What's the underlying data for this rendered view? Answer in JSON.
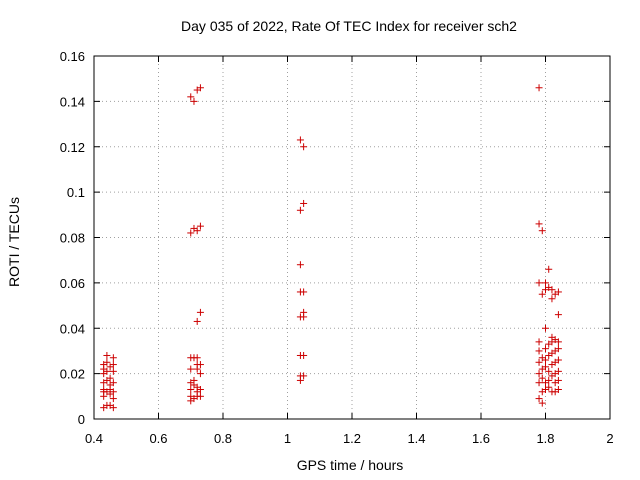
{
  "chart_data": {
    "type": "scatter",
    "title": "Day 035 of 2022, Rate Of TEC Index for receiver sch2",
    "xlabel": "GPS time / hours",
    "ylabel": "ROTI / TECUs",
    "xlim": [
      0.4,
      2.0
    ],
    "ylim": [
      0,
      0.16
    ],
    "xticks": [
      "0.4",
      "0.6",
      "0.8",
      "1",
      "1.2",
      "1.4",
      "1.6",
      "1.8",
      "2"
    ],
    "yticks": [
      "0",
      "0.02",
      "0.04",
      "0.06",
      "0.08",
      "0.1",
      "0.12",
      "0.14",
      "0.16"
    ],
    "grid": true,
    "marker": "+",
    "marker_color": "#cc0000",
    "series": [
      {
        "points": [
          [
            0.43,
            0.005
          ],
          [
            0.43,
            0.01
          ],
          [
            0.43,
            0.012
          ],
          [
            0.43,
            0.013
          ],
          [
            0.43,
            0.016
          ],
          [
            0.43,
            0.02
          ],
          [
            0.43,
            0.022
          ],
          [
            0.43,
            0.024
          ],
          [
            0.44,
            0.006
          ],
          [
            0.44,
            0.012
          ],
          [
            0.44,
            0.017
          ],
          [
            0.44,
            0.021
          ],
          [
            0.44,
            0.025
          ],
          [
            0.44,
            0.028
          ],
          [
            0.45,
            0.006
          ],
          [
            0.45,
            0.011
          ],
          [
            0.45,
            0.013
          ],
          [
            0.45,
            0.015
          ],
          [
            0.45,
            0.018
          ],
          [
            0.45,
            0.023
          ],
          [
            0.46,
            0.005
          ],
          [
            0.46,
            0.009
          ],
          [
            0.46,
            0.012
          ],
          [
            0.46,
            0.016
          ],
          [
            0.46,
            0.021
          ],
          [
            0.46,
            0.024
          ],
          [
            0.46,
            0.027
          ],
          [
            0.7,
            0.008
          ],
          [
            0.7,
            0.01
          ],
          [
            0.7,
            0.013
          ],
          [
            0.7,
            0.016
          ],
          [
            0.7,
            0.022
          ],
          [
            0.7,
            0.027
          ],
          [
            0.7,
            0.082
          ],
          [
            0.7,
            0.142
          ],
          [
            0.71,
            0.009
          ],
          [
            0.71,
            0.015
          ],
          [
            0.71,
            0.017
          ],
          [
            0.71,
            0.027
          ],
          [
            0.71,
            0.084
          ],
          [
            0.71,
            0.14
          ],
          [
            0.72,
            0.01
          ],
          [
            0.72,
            0.012
          ],
          [
            0.72,
            0.014
          ],
          [
            0.72,
            0.022
          ],
          [
            0.72,
            0.024
          ],
          [
            0.72,
            0.027
          ],
          [
            0.72,
            0.043
          ],
          [
            0.72,
            0.083
          ],
          [
            0.72,
            0.145
          ],
          [
            0.73,
            0.01
          ],
          [
            0.73,
            0.013
          ],
          [
            0.73,
            0.02
          ],
          [
            0.73,
            0.024
          ],
          [
            0.73,
            0.047
          ],
          [
            0.73,
            0.085
          ],
          [
            0.73,
            0.146
          ],
          [
            1.04,
            0.017
          ],
          [
            1.04,
            0.019
          ],
          [
            1.04,
            0.028
          ],
          [
            1.04,
            0.045
          ],
          [
            1.04,
            0.056
          ],
          [
            1.04,
            0.068
          ],
          [
            1.04,
            0.092
          ],
          [
            1.04,
            0.123
          ],
          [
            1.05,
            0.019
          ],
          [
            1.05,
            0.028
          ],
          [
            1.05,
            0.045
          ],
          [
            1.05,
            0.047
          ],
          [
            1.05,
            0.056
          ],
          [
            1.05,
            0.095
          ],
          [
            1.05,
            0.12
          ],
          [
            1.78,
            0.009
          ],
          [
            1.78,
            0.016
          ],
          [
            1.78,
            0.02
          ],
          [
            1.78,
            0.025
          ],
          [
            1.78,
            0.03
          ],
          [
            1.78,
            0.034
          ],
          [
            1.78,
            0.06
          ],
          [
            1.78,
            0.086
          ],
          [
            1.78,
            0.146
          ],
          [
            1.79,
            0.007
          ],
          [
            1.79,
            0.012
          ],
          [
            1.79,
            0.018
          ],
          [
            1.79,
            0.022
          ],
          [
            1.79,
            0.027
          ],
          [
            1.79,
            0.055
          ],
          [
            1.79,
            0.083
          ],
          [
            1.8,
            0.013
          ],
          [
            1.8,
            0.016
          ],
          [
            1.8,
            0.023
          ],
          [
            1.8,
            0.026
          ],
          [
            1.8,
            0.031
          ],
          [
            1.8,
            0.04
          ],
          [
            1.8,
            0.057
          ],
          [
            1.8,
            0.06
          ],
          [
            1.81,
            0.014
          ],
          [
            1.81,
            0.017
          ],
          [
            1.81,
            0.021
          ],
          [
            1.81,
            0.028
          ],
          [
            1.81,
            0.033
          ],
          [
            1.81,
            0.058
          ],
          [
            1.81,
            0.066
          ],
          [
            1.82,
            0.012
          ],
          [
            1.82,
            0.019
          ],
          [
            1.82,
            0.024
          ],
          [
            1.82,
            0.029
          ],
          [
            1.82,
            0.034
          ],
          [
            1.82,
            0.036
          ],
          [
            1.82,
            0.053
          ],
          [
            1.82,
            0.057
          ],
          [
            1.83,
            0.012
          ],
          [
            1.83,
            0.016
          ],
          [
            1.83,
            0.02
          ],
          [
            1.83,
            0.025
          ],
          [
            1.83,
            0.03
          ],
          [
            1.83,
            0.035
          ],
          [
            1.83,
            0.055
          ],
          [
            1.84,
            0.013
          ],
          [
            1.84,
            0.017
          ],
          [
            1.84,
            0.021
          ],
          [
            1.84,
            0.026
          ],
          [
            1.84,
            0.031
          ],
          [
            1.84,
            0.034
          ],
          [
            1.84,
            0.046
          ],
          [
            1.84,
            0.056
          ]
        ]
      }
    ]
  }
}
